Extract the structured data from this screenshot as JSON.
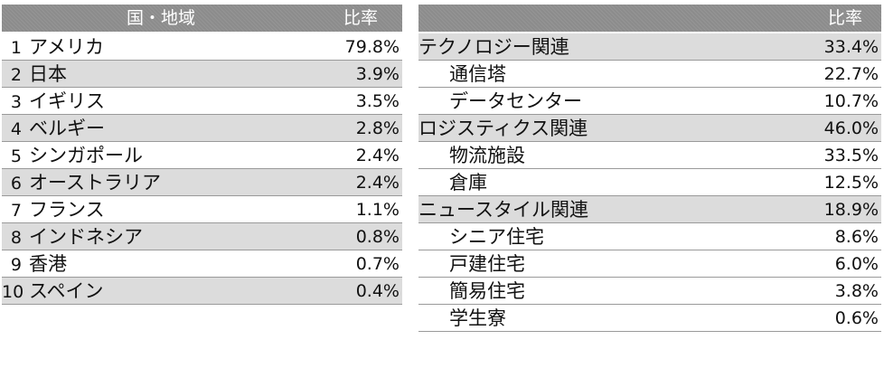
{
  "country_table": {
    "header": {
      "name": "国・地域",
      "ratio": "比率"
    },
    "rows": [
      {
        "rank": "1",
        "name": "アメリカ",
        "value": "79.8%"
      },
      {
        "rank": "2",
        "name": "日本",
        "value": "3.9%"
      },
      {
        "rank": "3",
        "name": "イギリス",
        "value": "3.5%"
      },
      {
        "rank": "4",
        "name": "ベルギー",
        "value": "2.8%"
      },
      {
        "rank": "5",
        "name": "シンガポール",
        "value": "2.4%"
      },
      {
        "rank": "6",
        "name": "オーストラリア",
        "value": "2.4%"
      },
      {
        "rank": "7",
        "name": "フランス",
        "value": "1.1%"
      },
      {
        "rank": "8",
        "name": "インドネシア",
        "value": "0.8%"
      },
      {
        "rank": "9",
        "name": "香港",
        "value": "0.7%"
      },
      {
        "rank": "10",
        "name": "スペイン",
        "value": "0.4%"
      }
    ]
  },
  "sector_table": {
    "header": {
      "ratio": "比率"
    },
    "rows": [
      {
        "name": "テクノロジー関連",
        "value": "33.4%"
      },
      {
        "name": "通信塔",
        "value": "22.7%"
      },
      {
        "name": "データセンター",
        "value": "10.7%"
      },
      {
        "name": "ロジスティクス関連",
        "value": "46.0%"
      },
      {
        "name": "物流施設",
        "value": "33.5%"
      },
      {
        "name": "倉庫",
        "value": "12.5%"
      },
      {
        "name": "ニュースタイル関連",
        "value": "18.9%"
      },
      {
        "name": "シニア住宅",
        "value": "8.6%"
      },
      {
        "name": "戸建住宅",
        "value": "6.0%"
      },
      {
        "name": "簡易住宅",
        "value": "3.8%"
      },
      {
        "name": "学生寮",
        "value": "0.6%"
      }
    ]
  },
  "colors": {
    "header_bg": "#8c8c8c",
    "row_shade": "#dcdcdc",
    "rule": "#9a9a9a"
  }
}
